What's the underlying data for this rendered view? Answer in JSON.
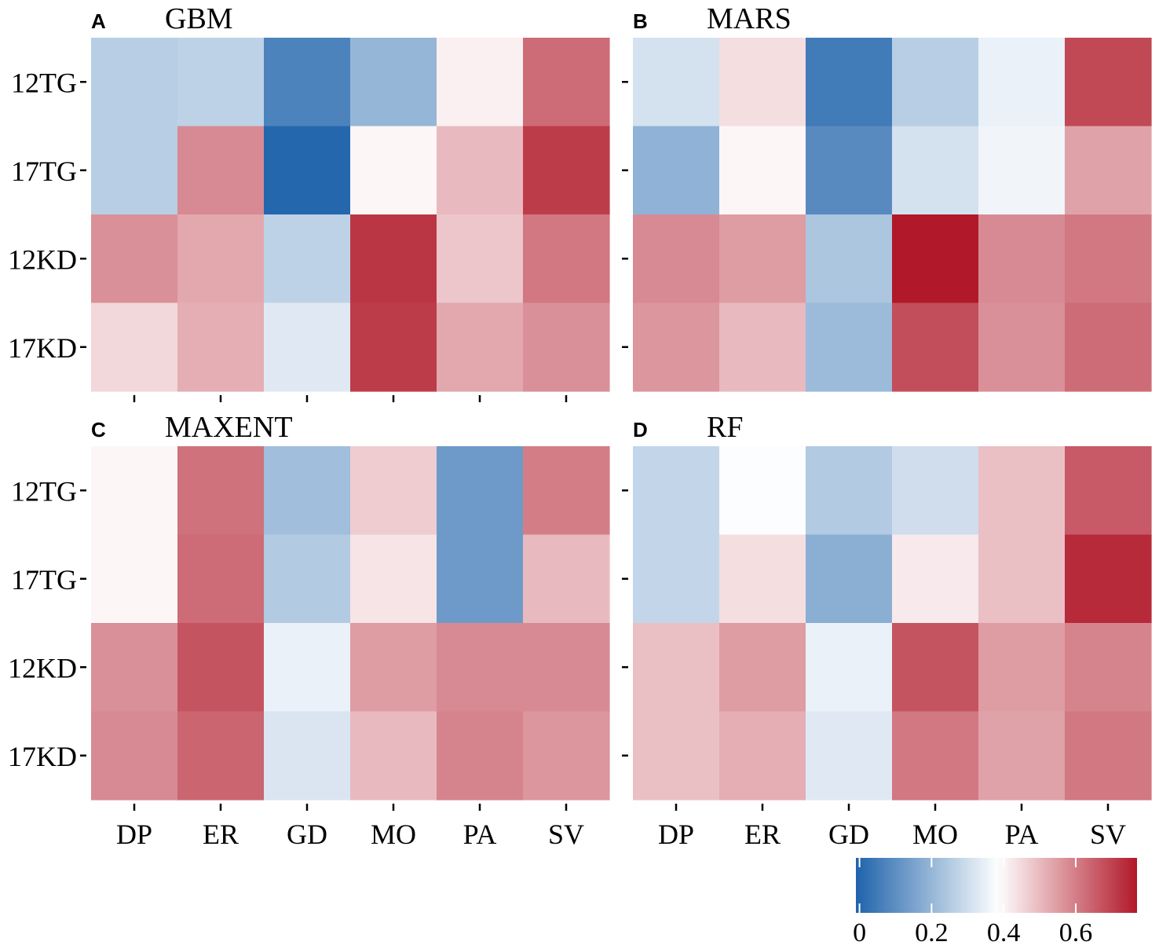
{
  "colors": {
    "low": "#1f63ab",
    "mid": "#ffffff",
    "high": "#b11829"
  },
  "chart_data": [
    {
      "type": "heatmap",
      "panel": "A",
      "title": "GBM",
      "x_categories": [
        "DP",
        "ER",
        "GD",
        "MO",
        "PA",
        "SV"
      ],
      "y_categories": [
        "12TG",
        "17TG",
        "12KD",
        "17KD"
      ],
      "values": [
        [
          0.26,
          0.27,
          0.07,
          0.2,
          0.41,
          0.63
        ],
        [
          0.26,
          0.58,
          0.0,
          0.4,
          0.5,
          0.71
        ],
        [
          0.57,
          0.53,
          0.27,
          0.72,
          0.48,
          0.61
        ],
        [
          0.45,
          0.52,
          0.33,
          0.71,
          0.53,
          0.57
        ]
      ]
    },
    {
      "type": "heatmap",
      "panel": "B",
      "title": "MARS",
      "x_categories": [
        "DP",
        "ER",
        "GD",
        "MO",
        "PA",
        "SV"
      ],
      "y_categories": [
        "12TG",
        "17TG",
        "12KD",
        "17KD"
      ],
      "values": [
        [
          0.31,
          0.44,
          0.05,
          0.26,
          0.35,
          0.69
        ],
        [
          0.19,
          0.4,
          0.09,
          0.31,
          0.36,
          0.54
        ],
        [
          0.58,
          0.55,
          0.24,
          0.77,
          0.58,
          0.61
        ],
        [
          0.56,
          0.5,
          0.21,
          0.68,
          0.57,
          0.63
        ]
      ]
    },
    {
      "type": "heatmap",
      "panel": "C",
      "title": "MAXENT",
      "x_categories": [
        "DP",
        "ER",
        "GD",
        "MO",
        "PA",
        "SV"
      ],
      "y_categories": [
        "12TG",
        "17TG",
        "12KD",
        "17KD"
      ],
      "values": [
        [
          0.4,
          0.62,
          0.22,
          0.47,
          0.13,
          0.6
        ],
        [
          0.4,
          0.63,
          0.25,
          0.43,
          0.13,
          0.5
        ],
        [
          0.57,
          0.67,
          0.35,
          0.55,
          0.58,
          0.58
        ],
        [
          0.58,
          0.64,
          0.32,
          0.5,
          0.59,
          0.56
        ]
      ]
    },
    {
      "type": "heatmap",
      "panel": "D",
      "title": "RF",
      "x_categories": [
        "DP",
        "ER",
        "GD",
        "MO",
        "PA",
        "SV"
      ],
      "y_categories": [
        "12TG",
        "17TG",
        "12KD",
        "17KD"
      ],
      "values": [
        [
          0.28,
          0.38,
          0.25,
          0.3,
          0.49,
          0.66
        ],
        [
          0.28,
          0.44,
          0.18,
          0.42,
          0.49,
          0.74
        ],
        [
          0.49,
          0.55,
          0.35,
          0.67,
          0.55,
          0.59
        ],
        [
          0.49,
          0.52,
          0.33,
          0.61,
          0.54,
          0.61
        ]
      ]
    }
  ],
  "colorbar": {
    "ticks": [
      0,
      0.2,
      0.4,
      0.6
    ],
    "tick_labels": [
      "0",
      "0.2",
      "0.4",
      "0.6"
    ],
    "range": [
      -0.01,
      0.77
    ],
    "midpoint": 0.385
  }
}
